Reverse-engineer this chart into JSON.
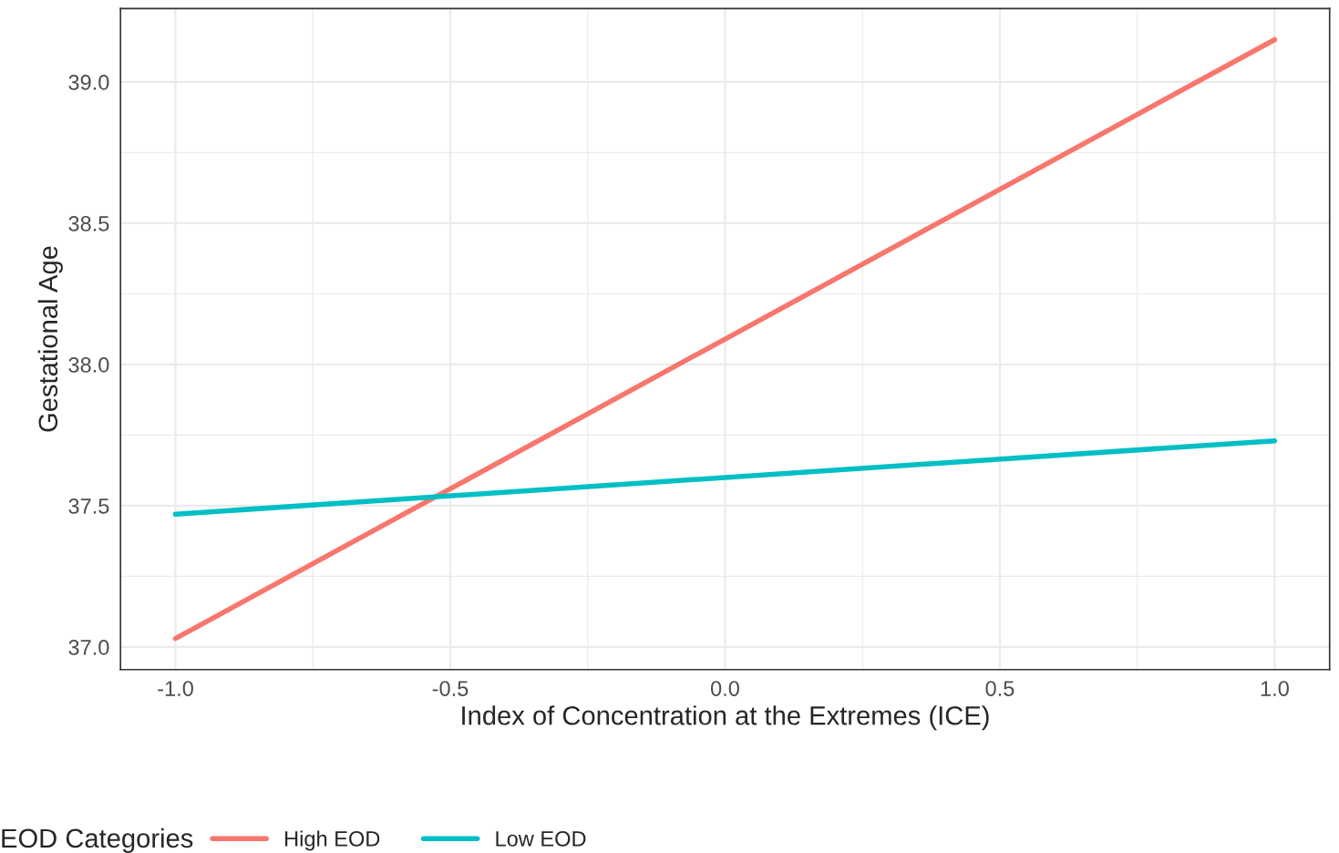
{
  "chart_data": {
    "type": "line",
    "xlabel": "Index of Concentration at the Extremes (ICE)",
    "ylabel": "Gestational Age",
    "legend_title": "EOD Categories",
    "x": [
      -1.0,
      1.0
    ],
    "series": [
      {
        "name": "High EOD",
        "color": "#f8766d",
        "values": [
          37.03,
          39.15
        ]
      },
      {
        "name": "Low EOD",
        "color": "#00bfc4",
        "values": [
          37.47,
          37.73
        ]
      }
    ],
    "xlim": [
      -1.1,
      1.1
    ],
    "xticks": [
      {
        "value": -1.0,
        "label": "-1.0"
      },
      {
        "value": -0.5,
        "label": "-0.5"
      },
      {
        "value": 0.0,
        "label": "0.0"
      },
      {
        "value": 0.5,
        "label": "0.5"
      },
      {
        "value": 1.0,
        "label": "1.0"
      }
    ],
    "ylim": [
      36.92,
      39.26
    ],
    "yticks": [
      {
        "value": 37.0,
        "label": "37.0"
      },
      {
        "value": 37.5,
        "label": "37.5"
      },
      {
        "value": 38.0,
        "label": "38.0"
      },
      {
        "value": 38.5,
        "label": "38.5"
      },
      {
        "value": 39.0,
        "label": "39.0"
      }
    ],
    "grid": true,
    "legend": "bottom",
    "marker": "none",
    "line_style": "solid"
  }
}
